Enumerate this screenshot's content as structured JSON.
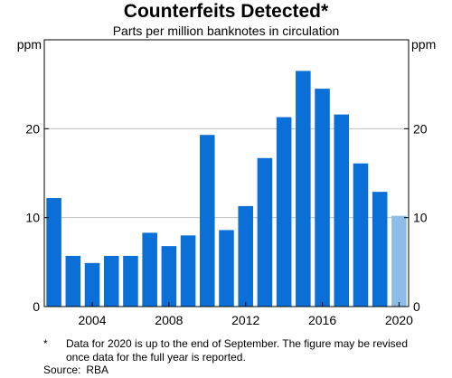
{
  "chart_data": {
    "type": "bar",
    "title": "Counterfeits Detected*",
    "subtitle": "Parts per million banknotes in circulation",
    "ylabel_left": "ppm",
    "ylabel_right": "ppm",
    "ylim": [
      0,
      30
    ],
    "yticks": [
      0,
      10,
      20
    ],
    "xlim": [
      2001.5,
      2020.5
    ],
    "xticks": [
      2004,
      2008,
      2012,
      2016,
      2020
    ],
    "grid": true,
    "categories": [
      2002,
      2003,
      2004,
      2005,
      2006,
      2007,
      2008,
      2009,
      2010,
      2011,
      2012,
      2013,
      2014,
      2015,
      2016,
      2017,
      2018,
      2019,
      2020
    ],
    "values": [
      12.2,
      5.7,
      4.9,
      5.7,
      5.7,
      8.3,
      6.8,
      8.0,
      19.3,
      8.6,
      11.3,
      16.7,
      21.3,
      26.5,
      24.5,
      21.6,
      16.1,
      12.9,
      10.2
    ],
    "colors": {
      "bar": "#0a6fd6",
      "partial_year_bar": "#8bbde8",
      "grid": "#c0c0c0",
      "axis": "#000000"
    },
    "partial_year": 2020
  },
  "footnote": {
    "mark": "*",
    "text": "Data for 2020 is up to the end of September. The figure may be revised once data for the full year is reported."
  },
  "source": {
    "label": "Source:",
    "value": "RBA"
  }
}
